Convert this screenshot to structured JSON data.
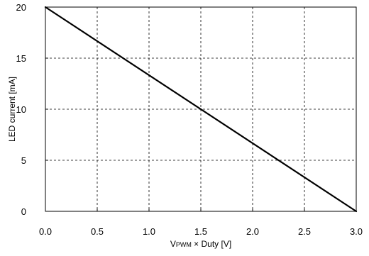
{
  "chart_data": {
    "type": "line",
    "title": "",
    "xlabel": {
      "prefix": "V",
      "sub": "PWM",
      "suffix": " × Duty [V]"
    },
    "ylabel": "LED current [mA]",
    "xlim": [
      0.0,
      3.0
    ],
    "ylim": [
      0,
      20
    ],
    "xticks": [
      0.0,
      0.5,
      1.0,
      1.5,
      2.0,
      2.5,
      3.0
    ],
    "xtick_labels": [
      "0.0",
      "0.5",
      "1.0",
      "1.5",
      "2.0",
      "2.5",
      "3.0"
    ],
    "yticks": [
      0,
      5,
      10,
      15,
      20
    ],
    "ytick_labels": [
      "0",
      "5",
      "10",
      "15",
      "20"
    ],
    "grid": true,
    "grid_style": "dashed",
    "series": [
      {
        "x": [
          0.0,
          3.0
        ],
        "y": [
          20,
          0
        ],
        "color": "#000000"
      }
    ]
  }
}
